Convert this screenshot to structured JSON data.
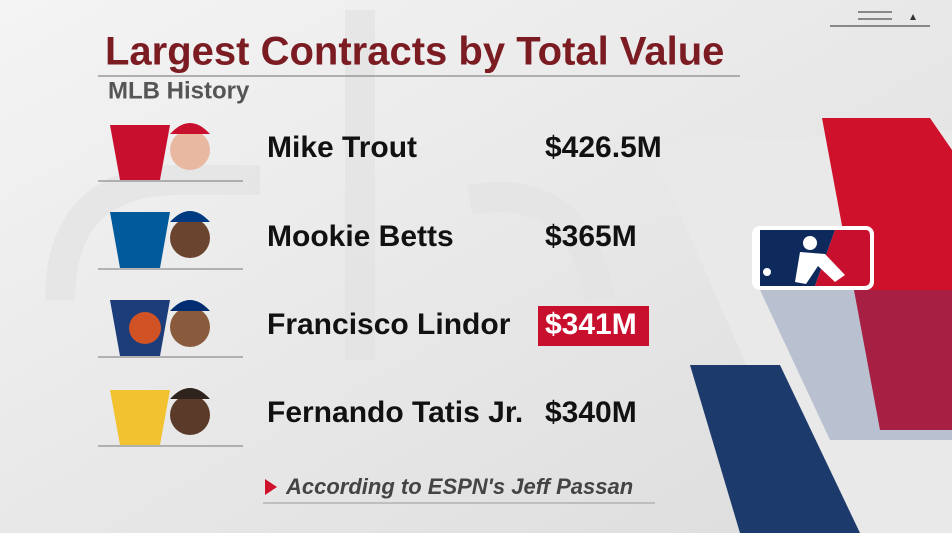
{
  "header": {
    "title": "Largest Contracts by Total Value",
    "subtitle": "MLB History"
  },
  "table": {
    "rows": [
      [
        "Mike Trout",
        "$426.5M"
      ],
      [
        "Mookie Betts",
        "$365M"
      ],
      [
        "Francisco Lindor",
        "$341M"
      ],
      [
        "Fernando Tatis Jr.",
        "$340M"
      ]
    ]
  },
  "footnote": "According to ESPN's Jeff Passan"
}
